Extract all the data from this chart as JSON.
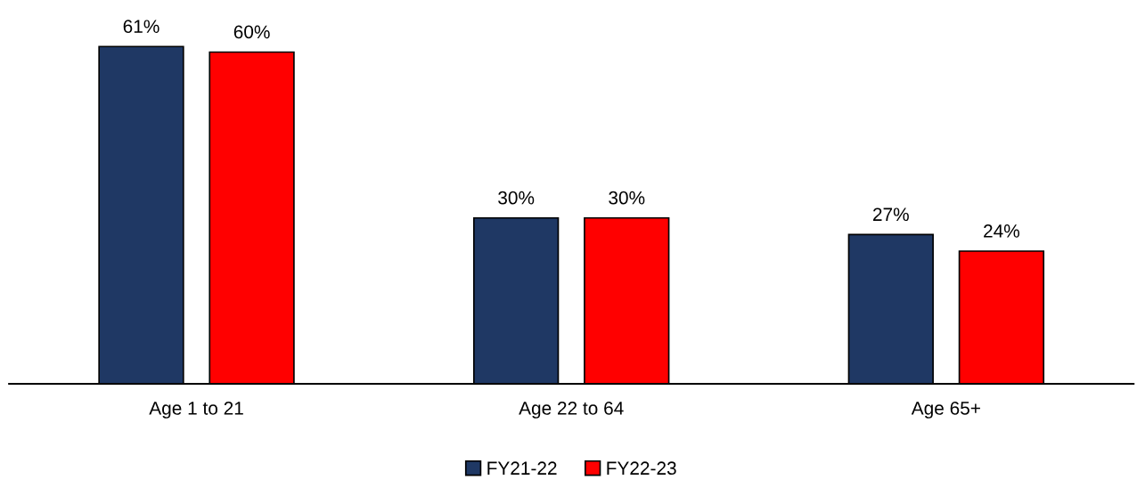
{
  "chart_data": {
    "type": "bar",
    "categories": [
      "Age 1 to 21",
      "Age 22 to 64",
      "Age 65+"
    ],
    "series": [
      {
        "name": "FY21-22",
        "color": "#1f3864",
        "values": [
          61,
          30,
          27
        ],
        "value_labels": [
          "61%",
          "30%",
          "27%"
        ]
      },
      {
        "name": "FY22-23",
        "color": "#ff0000",
        "values": [
          60,
          30,
          24
        ],
        "value_labels": [
          "60%",
          "30%",
          "24%"
        ]
      }
    ],
    "legend": "bottom",
    "grid": false
  }
}
